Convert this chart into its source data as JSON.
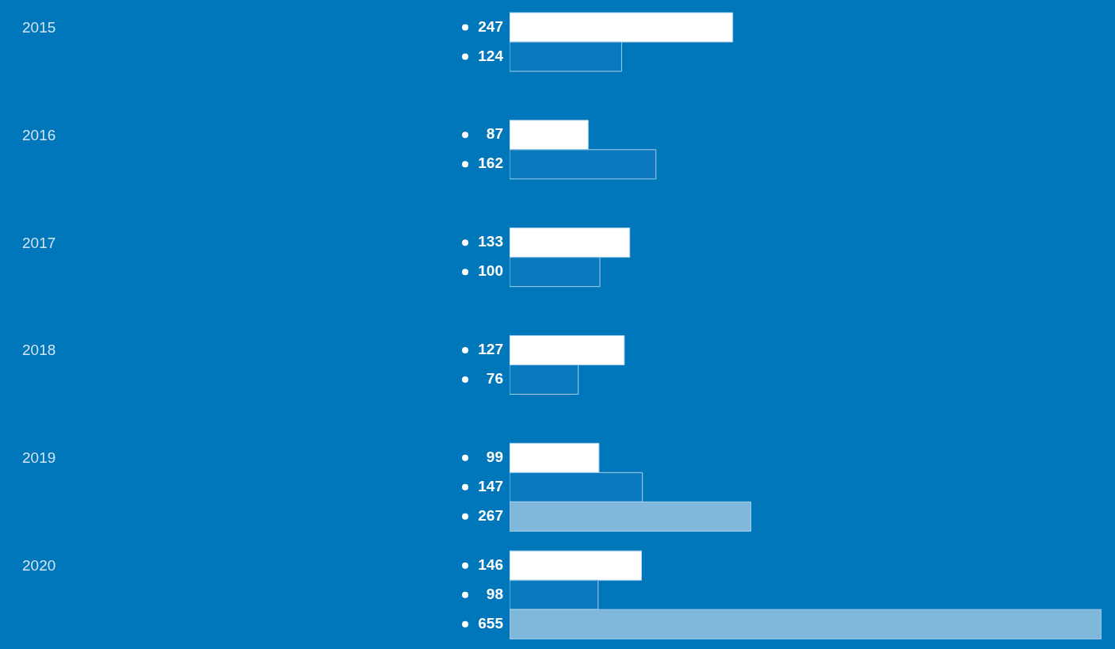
{
  "chart_data": {
    "type": "bar",
    "orientation": "horizontal",
    "categories": [
      "2015",
      "2016",
      "2017",
      "2018",
      "2019",
      "2020"
    ],
    "series": [
      {
        "color": "#ffffff",
        "values": [
          247,
          87,
          133,
          127,
          99,
          146
        ]
      },
      {
        "color": "#0a79be",
        "values": [
          124,
          162,
          100,
          76,
          147,
          98
        ]
      },
      {
        "color": "#80b8dc",
        "values": [
          null,
          null,
          null,
          null,
          267,
          655
        ]
      }
    ],
    "data_labels": true
  }
}
